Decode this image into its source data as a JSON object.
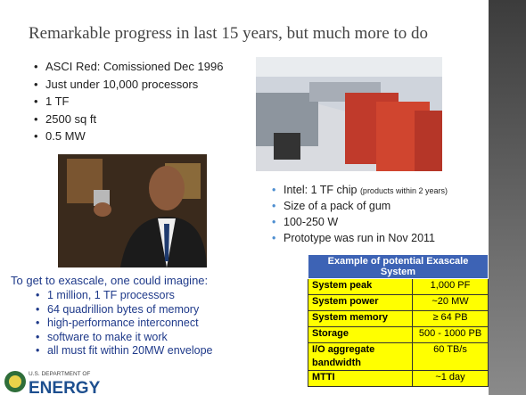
{
  "title": "Remarkable progress in last 15 years, but much more to do",
  "asci_bullets": [
    "ASCI Red: Comissioned Dec 1996",
    "Just under 10,000 processors",
    "1 TF",
    "2500 sq ft",
    "0.5 MW"
  ],
  "intel_bullets": {
    "first": {
      "text": "Intel: 1 TF  chip",
      "note": "(products within 2 years)"
    },
    "rest": [
      "Size of a pack of gum",
      "100-250 W",
      "Prototype was run in Nov 2011"
    ]
  },
  "exascale": {
    "intro": "To get to exascale, one could imagine:",
    "bullets": [
      "1 million, 1 TF processors",
      "64 quadrillion bytes of memory",
      "high-performance interconnect",
      "software to make it work",
      "all must fit within 20MW envelope"
    ]
  },
  "table": {
    "title": "Example of potential Exascale System",
    "rows": [
      [
        "System peak",
        "1,000 PF"
      ],
      [
        "System power",
        "~20 MW"
      ],
      [
        "System memory",
        "≥ 64 PB"
      ],
      [
        "Storage",
        "500 - 1000 PB"
      ],
      [
        "I/O aggregate bandwidth",
        "60 TB/s"
      ],
      [
        "MTTI",
        "~1 day"
      ]
    ]
  },
  "logo": {
    "line1": "U.S. DEPARTMENT OF",
    "line2": "ENERGY"
  }
}
